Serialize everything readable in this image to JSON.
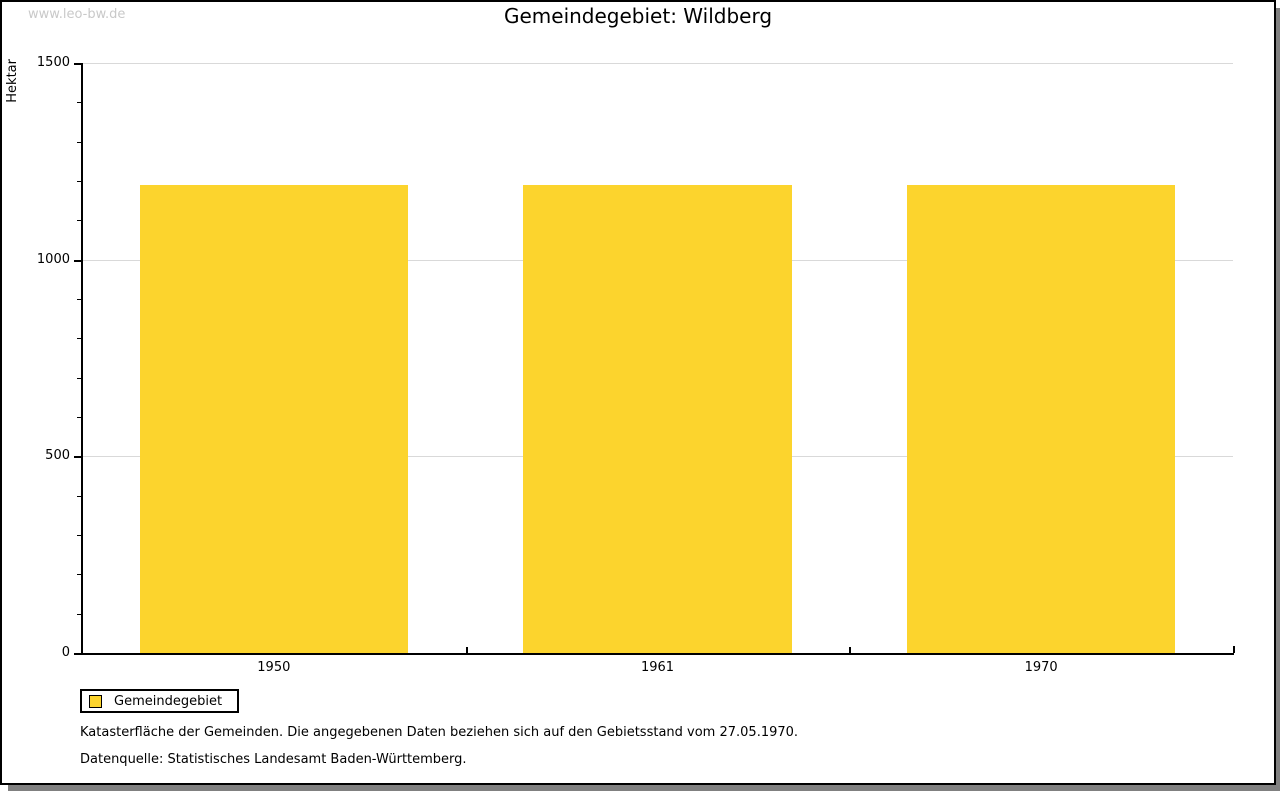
{
  "watermark": "www.leo-bw.de",
  "chart_data": {
    "type": "bar",
    "title": "Gemeindegebiet: Wildberg",
    "ylabel": "Hektar",
    "xlabel": "",
    "categories": [
      "1950",
      "1961",
      "1970"
    ],
    "series": [
      {
        "name": "Gemeindegebiet",
        "values": [
          1190,
          1190,
          1190
        ]
      }
    ],
    "ylim": [
      0,
      1500
    ],
    "yticks": [
      0,
      500,
      1000,
      1500
    ],
    "minor_tick_step": 100,
    "grid": true,
    "legend_position": "bottom-left",
    "bar_color": "#FCD42D",
    "grid_color": "#d9d9d9",
    "axis_color": "#000000"
  },
  "footer": {
    "note": "Katasterfläche der Gemeinden. Die angegebenen Daten beziehen sich auf den Gebietsstand vom 27.05.1970.",
    "source": "Datenquelle: Statistisches Landesamt Baden-Württemberg."
  }
}
